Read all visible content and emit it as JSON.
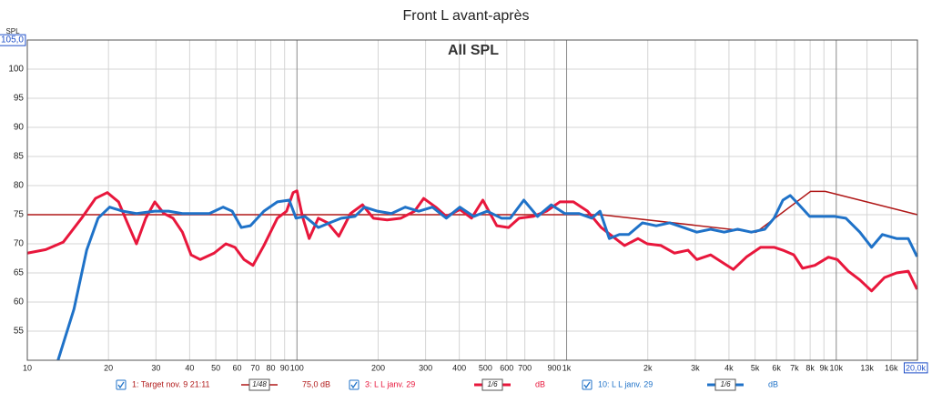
{
  "chart_data": {
    "type": "line",
    "title": "Front L avant-après",
    "subtitle": "All SPL",
    "y_label": "SPL",
    "log_x": true,
    "grid": true,
    "xlim": [
      10,
      20000
    ],
    "ylim": [
      50,
      105
    ],
    "xticks": [
      10,
      20,
      30,
      40,
      50,
      60,
      70,
      80,
      90,
      100,
      200,
      300,
      400,
      500,
      600,
      700,
      900,
      {
        "value": 1000,
        "label": "1k"
      },
      {
        "value": 2000,
        "label": "2k"
      },
      {
        "value": 3000,
        "label": "3k"
      },
      {
        "value": 4000,
        "label": "4k"
      },
      {
        "value": 5000,
        "label": "5k"
      },
      {
        "value": 6000,
        "label": "6k"
      },
      {
        "value": 7000,
        "label": "7k"
      },
      {
        "value": 8000,
        "label": "8k"
      },
      {
        "value": 9000,
        "label": "9k"
      },
      {
        "value": 10000,
        "label": "10k"
      },
      {
        "value": 13000,
        "label": "13k"
      },
      {
        "value": 16000,
        "label": "16k"
      },
      {
        "value": 20000,
        "label": "20,0k"
      }
    ],
    "yticks": [
      55,
      60,
      65,
      70,
      75,
      80,
      85,
      90,
      95,
      100,
      {
        "value": 105,
        "label": "105,0"
      }
    ],
    "series": [
      {
        "name": "1: Target nov. 9 21:11",
        "smoothing": "1/48",
        "level": "75,0 dB",
        "color": "#b01818",
        "x": [
          10,
          1340,
          5050,
          8030,
          9100,
          20000
        ],
        "values": [
          75,
          75,
          72,
          79,
          79,
          75
        ]
      },
      {
        "name": "3: L L janv. 29",
        "smoothing": "1/6",
        "level": "dB",
        "color": "#e8173c",
        "x": [
          10,
          11.7,
          13.6,
          15.9,
          17.9,
          19.8,
          21.8,
          23.5,
          25.4,
          27.5,
          29.7,
          32.1,
          34.7,
          37.6,
          40.5,
          43.8,
          49.3,
          54.5,
          58.9,
          63.6,
          68.7,
          75.4,
          84.6,
          91.5,
          96.8,
          100,
          104.8,
          111,
          120,
          130,
          143,
          158,
          175,
          192,
          216,
          243,
          273,
          295,
          327,
          358,
          402,
          444,
          489,
          551,
          609,
          666,
          750,
          842,
          944,
          1060,
          1196,
          1343,
          1450,
          1640,
          1840,
          1990,
          2240,
          2510,
          2820,
          3040,
          3420,
          3840,
          4150,
          4660,
          5240,
          5880,
          6340,
          6960,
          7500,
          8330,
          9350,
          10090,
          11080,
          12230,
          13520,
          15090,
          16730,
          18490,
          19930
        ],
        "values": [
          68.4,
          69,
          70.3,
          74.4,
          77.8,
          78.8,
          77.2,
          73.6,
          70,
          74.4,
          77.2,
          75.2,
          74.4,
          72,
          68.1,
          67.3,
          68.4,
          70,
          69.4,
          67.3,
          66.3,
          69.7,
          74.4,
          75.6,
          78.8,
          79.1,
          74.7,
          70.9,
          74.4,
          73.6,
          71.3,
          75.2,
          76.7,
          74.4,
          74.1,
          74.4,
          75.6,
          77.8,
          76.3,
          74.7,
          75.9,
          74.4,
          77.5,
          73.1,
          72.8,
          74.4,
          74.7,
          75.6,
          77.2,
          77.2,
          75.6,
          72.8,
          71.6,
          69.7,
          70.9,
          70,
          69.7,
          68.4,
          68.9,
          67.3,
          68.1,
          66.6,
          65.6,
          67.8,
          69.4,
          69.4,
          68.9,
          68.1,
          65.8,
          66.3,
          67.7,
          67.3,
          65.3,
          63.8,
          61.9,
          64.2,
          65,
          65.3,
          62.2
        ]
      },
      {
        "name": "10: L L janv. 29",
        "smoothing": "1/6",
        "level": "dB",
        "color": "#1f72c8",
        "x": [
          13,
          14.9,
          16.6,
          18.3,
          20.2,
          22.6,
          25.4,
          29.7,
          33.4,
          37.6,
          42.1,
          47.3,
          53.2,
          57.5,
          62.2,
          67.2,
          75.4,
          84.6,
          93.6,
          99.2,
          107,
          120,
          132,
          146,
          164,
          178,
          199,
          224,
          252,
          283,
          318,
          358,
          402,
          452,
          508,
          573,
          618,
          694,
          780,
          877,
          985,
          1110,
          1240,
          1330,
          1440,
          1570,
          1700,
          1910,
          2150,
          2410,
          2710,
          3040,
          3420,
          3840,
          4310,
          4840,
          5430,
          5880,
          6340,
          6750,
          7280,
          7970,
          8950,
          9880,
          10850,
          12230,
          13520,
          14830,
          16730,
          18490,
          19930
        ],
        "values": [
          50,
          58.8,
          68.9,
          74.4,
          76.3,
          75.6,
          75.2,
          75.6,
          75.6,
          75.2,
          75.2,
          75.2,
          76.3,
          75.6,
          72.8,
          73.1,
          75.6,
          77.2,
          77.5,
          74.4,
          74.7,
          72.8,
          73.6,
          74.4,
          74.7,
          76.3,
          75.6,
          75.2,
          76.3,
          75.6,
          76.3,
          74.4,
          76.3,
          74.7,
          75.6,
          74.4,
          74.4,
          77.5,
          74.7,
          76.7,
          75.2,
          75.2,
          74.4,
          75.6,
          70.9,
          71.6,
          71.6,
          73.6,
          73.1,
          73.6,
          72.8,
          72,
          72.5,
          72,
          72.5,
          72,
          72.5,
          74.4,
          77.5,
          78.3,
          76.7,
          74.7,
          74.7,
          74.7,
          74.4,
          72,
          69.4,
          71.6,
          70.9,
          70.9,
          67.8
        ]
      }
    ]
  }
}
